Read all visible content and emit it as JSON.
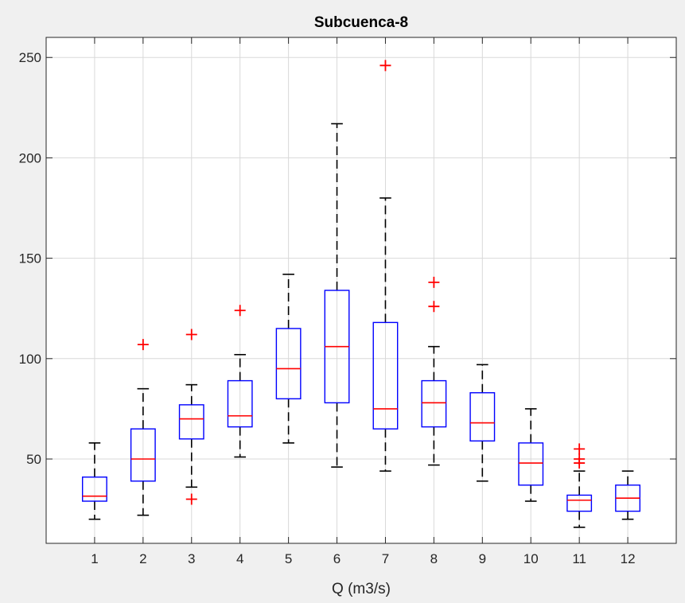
{
  "chart_data": {
    "type": "boxplot",
    "title": "Subcuenca-8",
    "xlabel": "Q (m3/s)",
    "ylabel": "",
    "ylim": [
      8,
      260
    ],
    "yticks": [
      50,
      100,
      150,
      200,
      250
    ],
    "grid": true,
    "colors": {
      "box": "#0000ff",
      "median": "#ff0000",
      "whisker": "#000000",
      "outlier": "#ff0000",
      "grid": "#d9d9d9",
      "axes": "#262626"
    },
    "categories": [
      "1",
      "2",
      "3",
      "4",
      "5",
      "6",
      "7",
      "8",
      "9",
      "10",
      "11",
      "12"
    ],
    "boxes": [
      {
        "category": "1",
        "q1": 29,
        "median": 31.5,
        "q3": 41,
        "whisker_low": 20,
        "whisker_high": 58,
        "outliers": []
      },
      {
        "category": "2",
        "q1": 39,
        "median": 50,
        "q3": 65,
        "whisker_low": 22,
        "whisker_high": 85,
        "outliers": [
          107
        ]
      },
      {
        "category": "3",
        "q1": 60,
        "median": 70,
        "q3": 77,
        "whisker_low": 36,
        "whisker_high": 87,
        "outliers": [
          30,
          112
        ]
      },
      {
        "category": "4",
        "q1": 66,
        "median": 71.5,
        "q3": 89,
        "whisker_low": 51,
        "whisker_high": 102,
        "outliers": [
          124
        ]
      },
      {
        "category": "5",
        "q1": 80,
        "median": 95,
        "q3": 115,
        "whisker_low": 58,
        "whisker_high": 142,
        "outliers": []
      },
      {
        "category": "6",
        "q1": 78,
        "median": 106,
        "q3": 134,
        "whisker_low": 46,
        "whisker_high": 217,
        "outliers": []
      },
      {
        "category": "7",
        "q1": 65,
        "median": 75,
        "q3": 118,
        "whisker_low": 44,
        "whisker_high": 180,
        "outliers": [
          246
        ]
      },
      {
        "category": "8",
        "q1": 66,
        "median": 78,
        "q3": 89,
        "whisker_low": 47,
        "whisker_high": 106,
        "outliers": [
          126,
          138
        ]
      },
      {
        "category": "9",
        "q1": 59,
        "median": 68,
        "q3": 83,
        "whisker_low": 39,
        "whisker_high": 97,
        "outliers": []
      },
      {
        "category": "10",
        "q1": 37,
        "median": 48,
        "q3": 58,
        "whisker_low": 29,
        "whisker_high": 75,
        "outliers": []
      },
      {
        "category": "11",
        "q1": 24,
        "median": 29.5,
        "q3": 32,
        "whisker_low": 16,
        "whisker_high": 44,
        "outliers": [
          48,
          50,
          55
        ]
      },
      {
        "category": "12",
        "q1": 24,
        "median": 30.5,
        "q3": 37,
        "whisker_low": 20,
        "whisker_high": 44,
        "outliers": []
      }
    ]
  }
}
